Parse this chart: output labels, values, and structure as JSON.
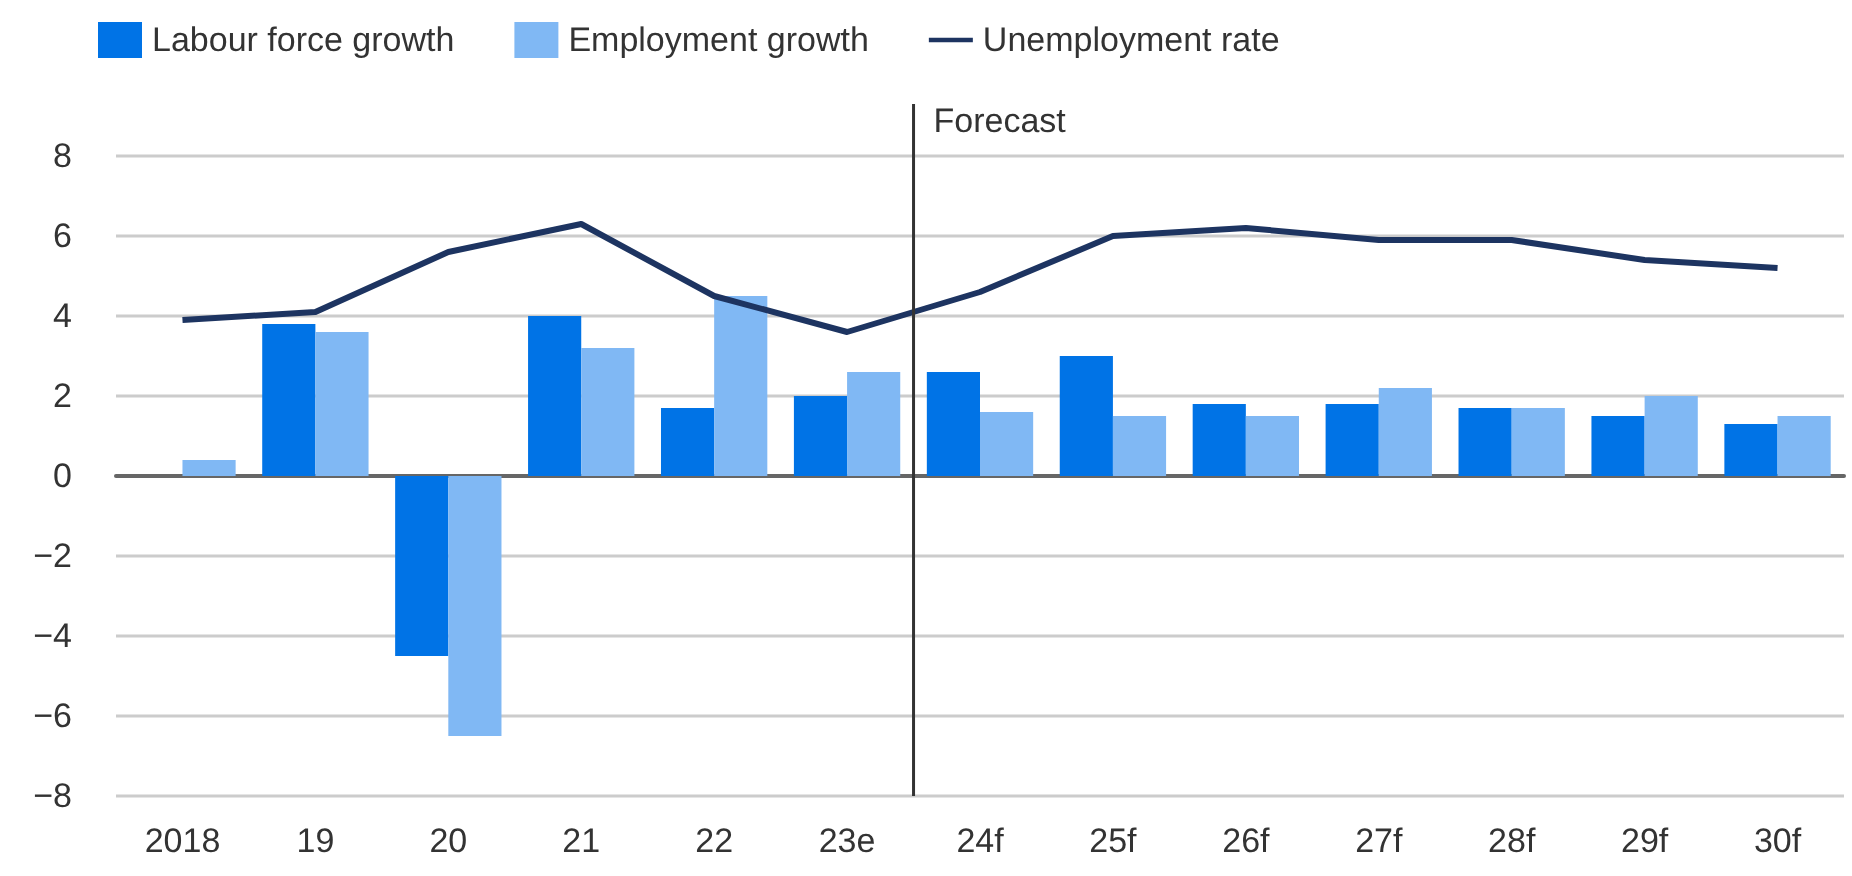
{
  "chart_data": {
    "type": "bar",
    "categories": [
      "2018",
      "19",
      "20",
      "21",
      "22",
      "23e",
      "24f",
      "25f",
      "26f",
      "27f",
      "28f",
      "29f",
      "30f"
    ],
    "series": [
      {
        "name": "Labour force growth",
        "color": "#0073e6",
        "values": [
          null,
          3.8,
          -4.5,
          4.0,
          1.7,
          2.0,
          2.6,
          3.0,
          1.8,
          1.8,
          1.7,
          1.5,
          1.3
        ]
      },
      {
        "name": "Employment growth",
        "color": "#80b8f4",
        "values": [
          0.4,
          3.6,
          -6.5,
          3.2,
          4.5,
          2.6,
          1.6,
          1.5,
          1.5,
          2.2,
          1.7,
          2.0,
          1.5
        ]
      },
      {
        "name": "Unemployment rate",
        "type": "line",
        "color": "#1d3461",
        "values": [
          3.9,
          4.1,
          5.6,
          6.3,
          4.5,
          3.6,
          4.6,
          6.0,
          6.2,
          5.9,
          5.9,
          5.4,
          5.2
        ]
      }
    ],
    "ylim": [
      -8,
      8
    ],
    "yticks": [
      -8,
      -6,
      -4,
      -2,
      0,
      2,
      4,
      6,
      8
    ],
    "grid": "y",
    "legend": "top left",
    "marker": "none",
    "ref_lines": [
      {
        "axis": "x",
        "value": "24f",
        "label": "Forecast",
        "color": "#333333"
      }
    ]
  }
}
